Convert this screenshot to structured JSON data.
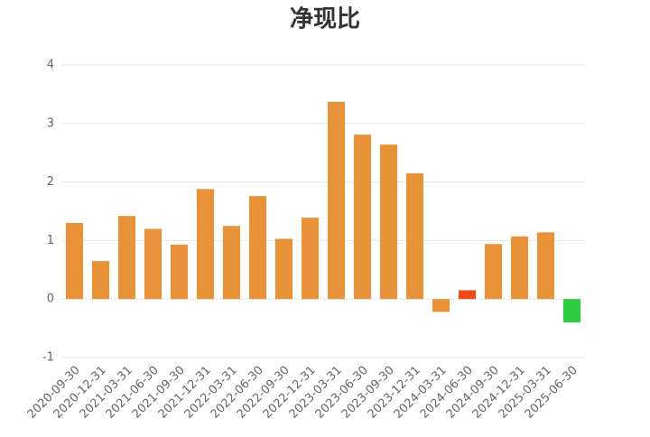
{
  "chart_data": {
    "type": "bar",
    "title": "净现比",
    "categories": [
      "2020-09-30",
      "2020-12-31",
      "2021-03-31",
      "2021-06-30",
      "2021-09-30",
      "2021-12-31",
      "2022-03-31",
      "2022-06-30",
      "2022-09-30",
      "2022-12-31",
      "2023-03-31",
      "2023-06-30",
      "2023-09-30",
      "2023-12-31",
      "2024-03-31",
      "2024-06-30",
      "2024-09-30",
      "2024-12-31",
      "2025-03-31",
      "2025-06-30"
    ],
    "values": [
      1.3,
      0.65,
      1.42,
      1.2,
      0.93,
      1.88,
      1.25,
      1.76,
      1.03,
      1.39,
      3.37,
      2.81,
      2.64,
      2.15,
      -0.22,
      0.15,
      0.94,
      1.07,
      1.14,
      -0.4
    ],
    "colors": [
      "#e8933a",
      "#e8933a",
      "#e8933a",
      "#e8933a",
      "#e8933a",
      "#e8933a",
      "#e8933a",
      "#e8933a",
      "#e8933a",
      "#e8933a",
      "#e8933a",
      "#e8933a",
      "#e8933a",
      "#e8933a",
      "#e8933a",
      "#f04a1a",
      "#e8933a",
      "#e8933a",
      "#e8933a",
      "#2ecc40"
    ],
    "ylim": [
      -1,
      4
    ],
    "yticks": [
      -1,
      0,
      1,
      2,
      3,
      4
    ],
    "grid": true
  }
}
